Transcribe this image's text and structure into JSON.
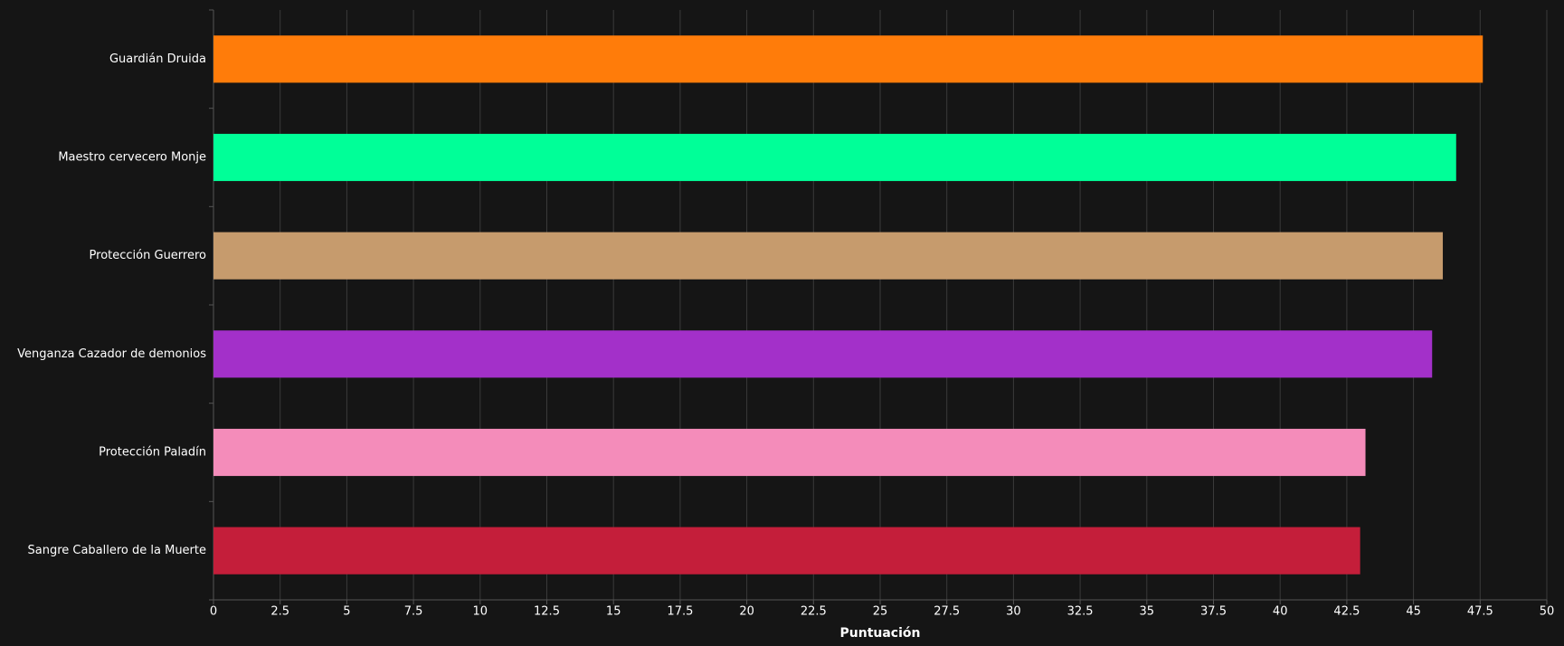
{
  "chart_data": {
    "type": "bar",
    "orientation": "horizontal",
    "xlabel": "Puntuación",
    "categories": [
      "Guardián Druida",
      "Maestro cervecero Monje",
      "Protección Guerrero",
      "Venganza Cazador de demonios",
      "Protección Paladín",
      "Sangre Caballero de la Muerte"
    ],
    "values": [
      47.6,
      46.6,
      46.1,
      45.7,
      43.2,
      43.0
    ],
    "colors": [
      "#ff7c0a",
      "#00ff98",
      "#c69b6d",
      "#a330c9",
      "#f48cba",
      "#c41e3a"
    ],
    "xlim": [
      0,
      50
    ],
    "xticks": [
      0,
      2.5,
      5,
      7.5,
      10,
      12.5,
      15,
      17.5,
      20,
      22.5,
      25,
      27.5,
      30,
      32.5,
      35,
      37.5,
      40,
      42.5,
      45,
      47.5,
      50
    ],
    "grid": true
  }
}
